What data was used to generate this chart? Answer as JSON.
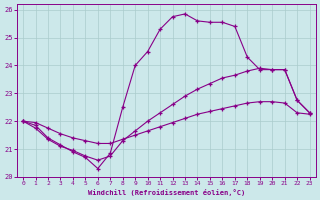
{
  "xlabel": "Windchill (Refroidissement éolien,°C)",
  "bg_color": "#cce8ea",
  "line_color": "#880088",
  "grid_color": "#aacccc",
  "xlim": [
    -0.5,
    23.5
  ],
  "ylim": [
    20,
    26.2
  ],
  "yticks": [
    20,
    21,
    22,
    23,
    24,
    25,
    26
  ],
  "xticks": [
    0,
    1,
    2,
    3,
    4,
    5,
    6,
    7,
    8,
    9,
    10,
    11,
    12,
    13,
    14,
    15,
    16,
    17,
    18,
    19,
    20,
    21,
    22,
    23
  ],
  "series1_x": [
    0,
    1,
    2,
    3,
    4,
    5,
    6,
    7,
    8,
    9,
    10,
    11,
    12,
    13,
    14,
    15,
    16,
    17,
    18,
    19,
    20,
    21,
    22,
    23
  ],
  "series1_y": [
    22.0,
    21.85,
    21.4,
    21.15,
    20.9,
    20.7,
    20.3,
    20.85,
    22.5,
    24.0,
    24.5,
    25.3,
    25.75,
    25.85,
    25.6,
    25.55,
    25.55,
    25.4,
    24.3,
    23.85,
    23.85,
    23.85,
    22.75,
    22.3
  ],
  "series2_x": [
    0,
    1,
    2,
    3,
    4,
    5,
    6,
    7,
    8,
    9,
    10,
    11,
    12,
    13,
    14,
    15,
    16,
    17,
    18,
    19,
    20,
    21,
    22,
    23
  ],
  "series2_y": [
    22.0,
    21.75,
    21.35,
    21.1,
    20.95,
    20.75,
    20.6,
    20.75,
    21.3,
    21.65,
    22.0,
    22.3,
    22.6,
    22.9,
    23.15,
    23.35,
    23.55,
    23.65,
    23.8,
    23.9,
    23.85,
    23.85,
    22.75,
    22.3
  ],
  "series3_x": [
    0,
    1,
    2,
    3,
    4,
    5,
    6,
    7,
    8,
    9,
    10,
    11,
    12,
    13,
    14,
    15,
    16,
    17,
    18,
    19,
    20,
    21,
    22,
    23
  ],
  "series3_y": [
    22.0,
    21.95,
    21.75,
    21.55,
    21.4,
    21.3,
    21.2,
    21.2,
    21.35,
    21.5,
    21.65,
    21.8,
    21.95,
    22.1,
    22.25,
    22.35,
    22.45,
    22.55,
    22.65,
    22.7,
    22.7,
    22.65,
    22.3,
    22.25
  ]
}
